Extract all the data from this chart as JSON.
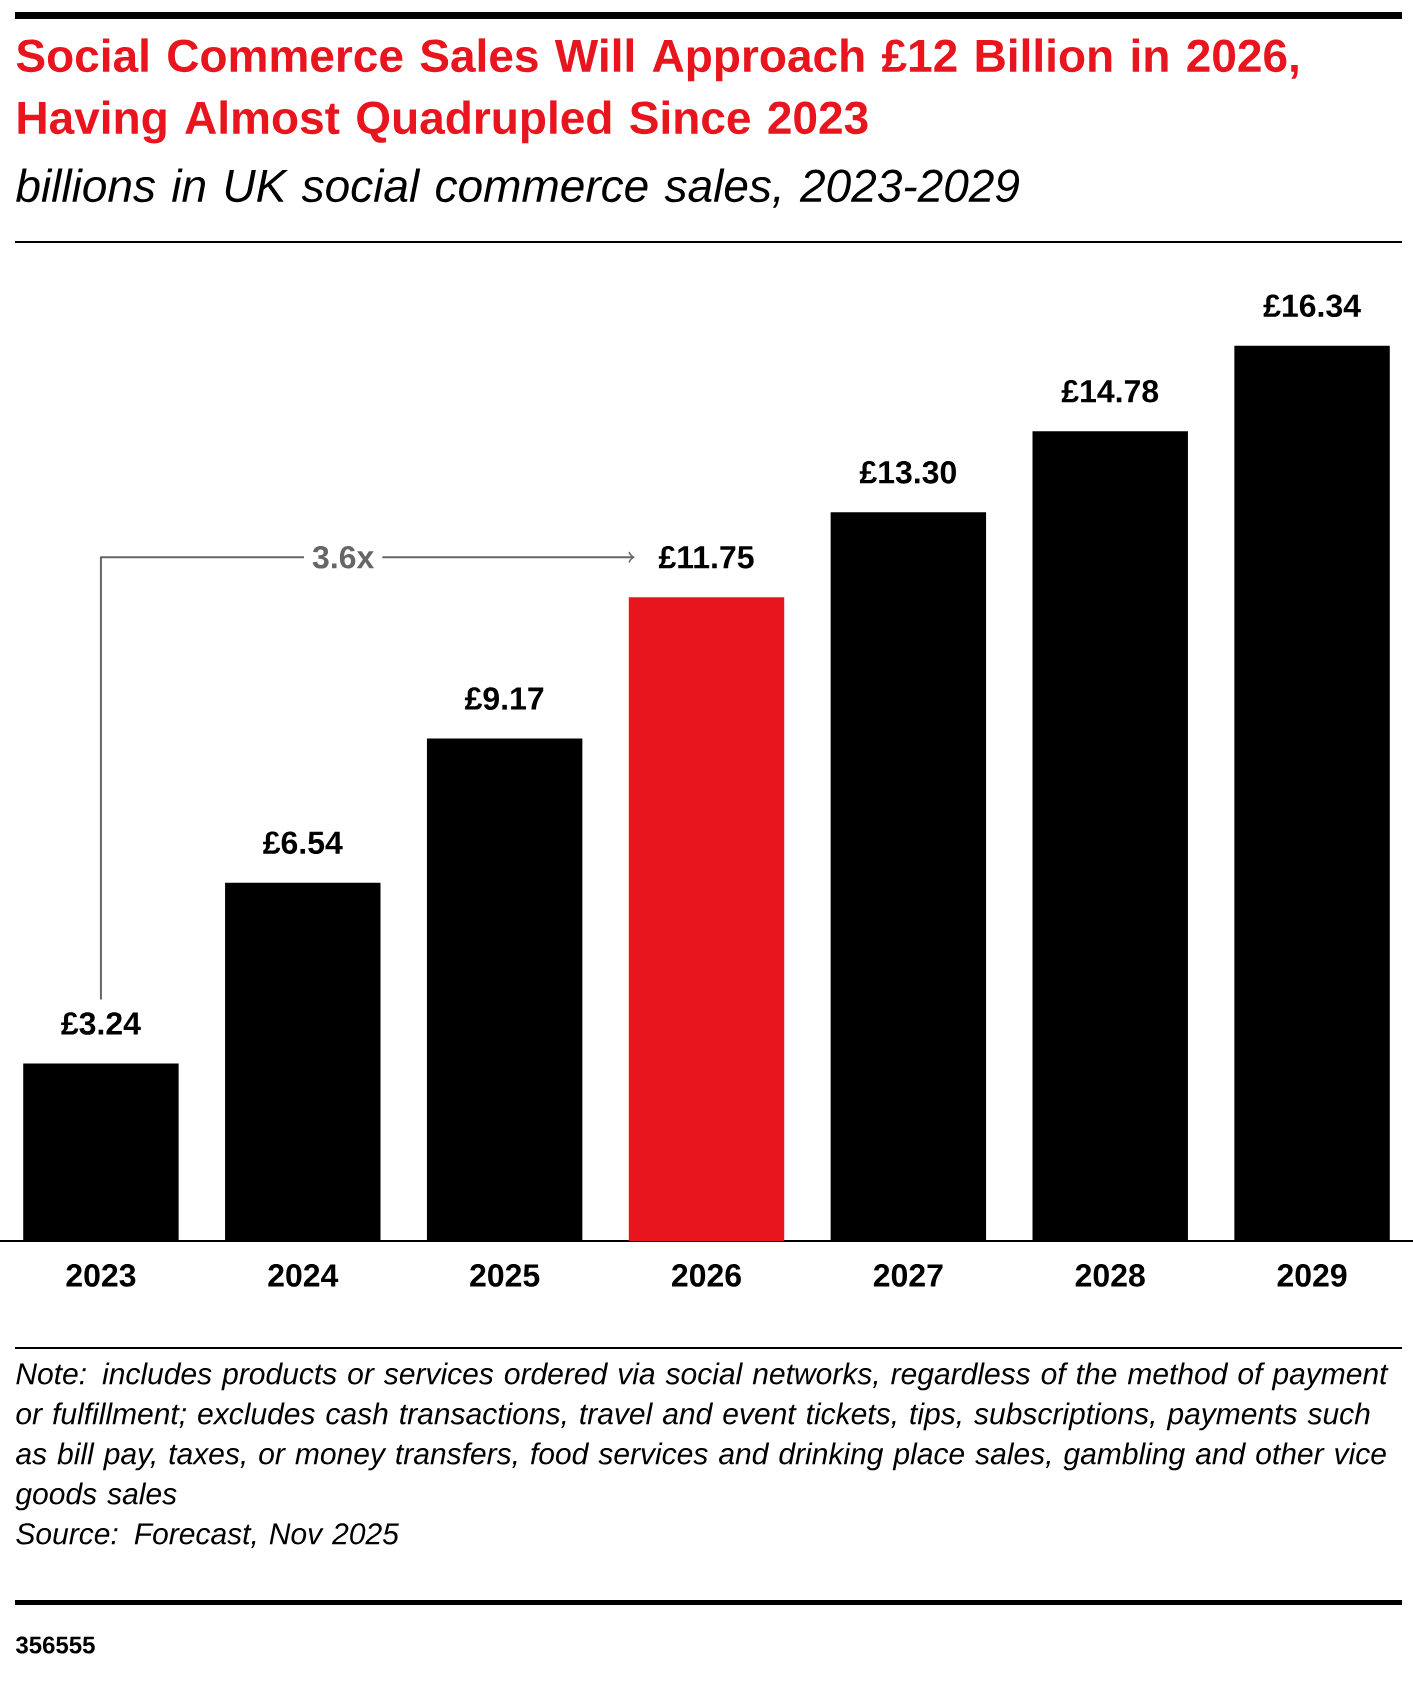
{
  "chart_data": {
    "type": "bar",
    "title": "Social Commerce Sales Will Approach £12 Billion in 2026, Having Almost Quadrupled Since 2023",
    "subtitle": "billions in UK social commerce sales, 2023-2029",
    "categories": [
      "2023",
      "2024",
      "2025",
      "2026",
      "2027",
      "2028",
      "2029"
    ],
    "values": [
      3.24,
      6.54,
      9.17,
      11.75,
      13.3,
      14.78,
      16.34
    ],
    "value_labels": [
      "£3.24",
      "£6.54",
      "£9.17",
      "£11.75",
      "£13.30",
      "£14.78",
      "£16.34"
    ],
    "colors": [
      "#000000",
      "#000000",
      "#000000",
      "#e8151f",
      "#000000",
      "#000000",
      "#000000"
    ],
    "annotations": [
      "3.6x",
      "Note: includes products or services ordered via social networks, regardless of the method of payment or fulfillment; excludes cash transactions, travel and event tickets, tips, subscriptions, payments such as bill pay, taxes, or money transfers, food services and drinking place sales, gambling and other vice goods sales",
      "Source: Forecast, Nov 2025",
      "356555"
    ]
  }
}
